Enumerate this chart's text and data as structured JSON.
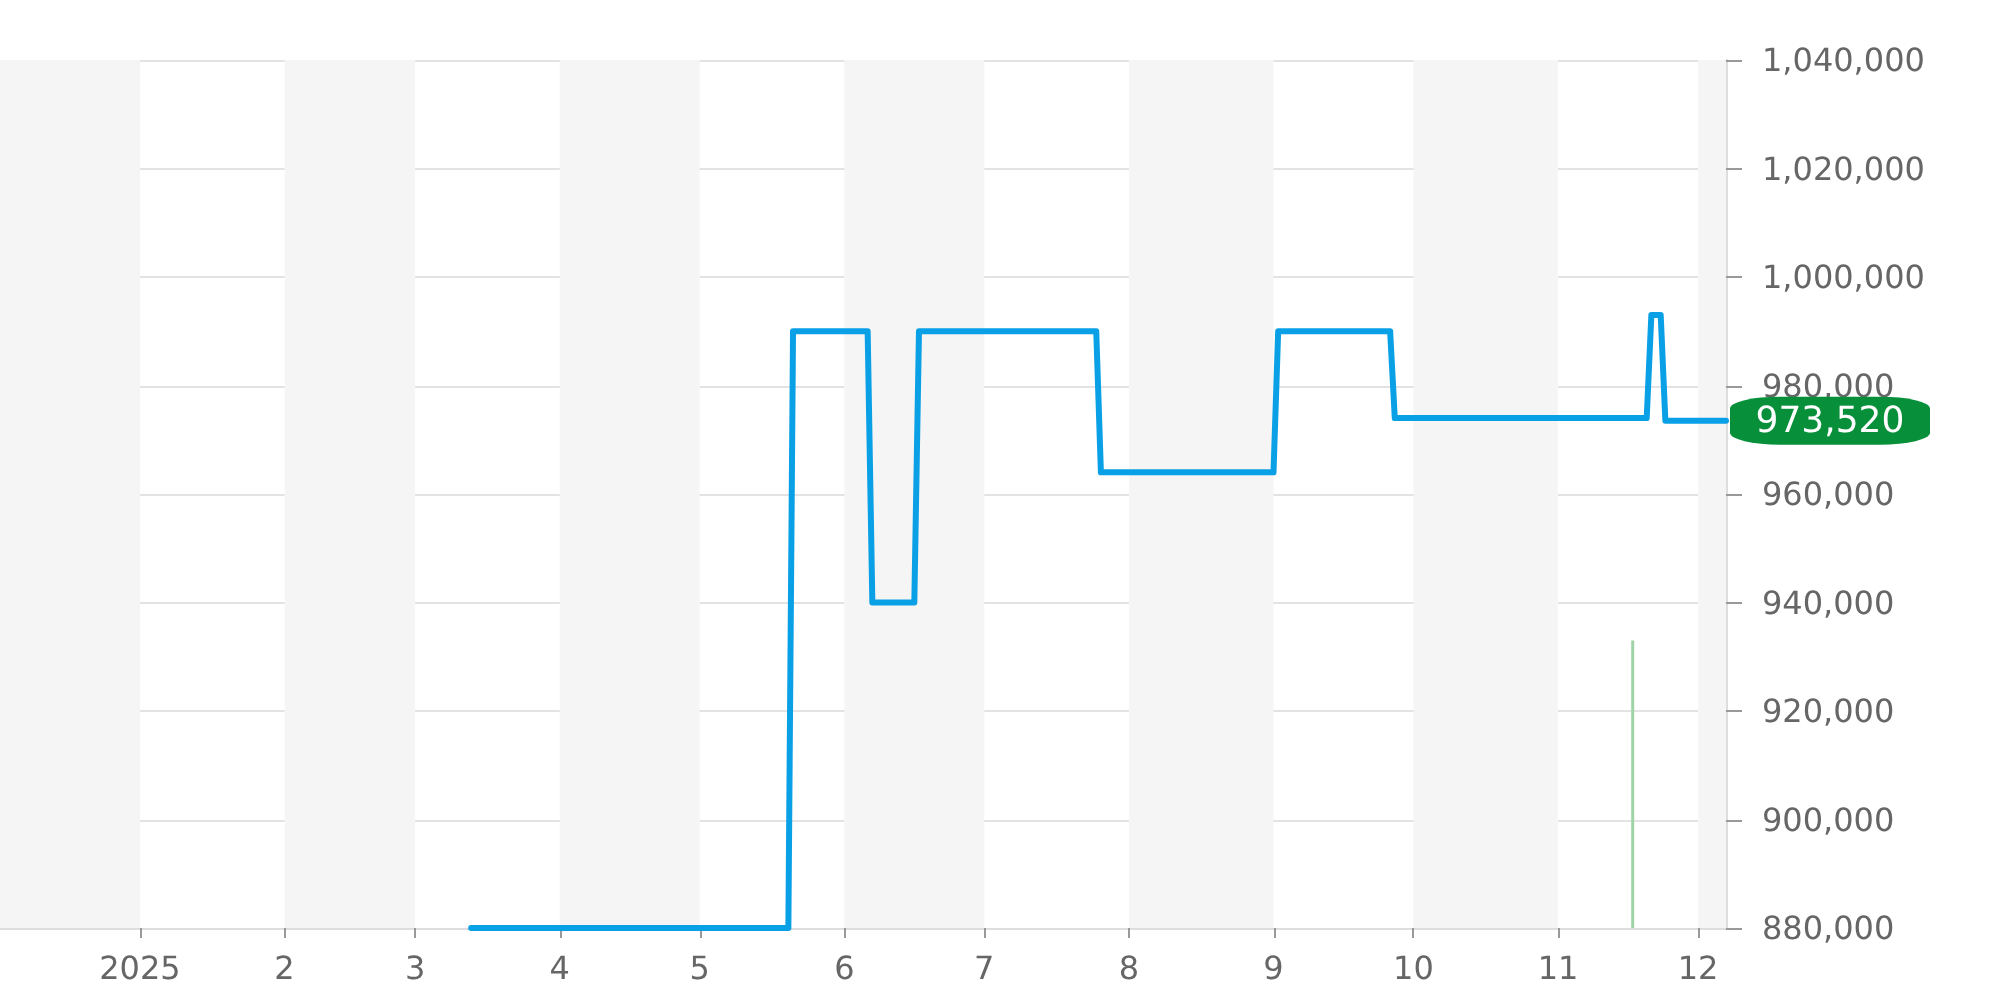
{
  "chart_data": {
    "type": "line",
    "xlim": [
      "2024-12-02",
      "2025-12-07"
    ],
    "xticks": [
      {
        "value": "2025-01-01",
        "label": "2025"
      },
      {
        "value": "2025-02-01",
        "label": "2"
      },
      {
        "value": "2025-03-01",
        "label": "3"
      },
      {
        "value": "2025-04-01",
        "label": "4"
      },
      {
        "value": "2025-05-01",
        "label": "5"
      },
      {
        "value": "2025-06-01",
        "label": "6"
      },
      {
        "value": "2025-07-01",
        "label": "7"
      },
      {
        "value": "2025-08-01",
        "label": "8"
      },
      {
        "value": "2025-09-01",
        "label": "9"
      },
      {
        "value": "2025-10-01",
        "label": "10"
      },
      {
        "value": "2025-11-01",
        "label": "11"
      },
      {
        "value": "2025-12-01",
        "label": "12"
      }
    ],
    "ylim": [
      880000,
      1040000
    ],
    "yticks": [
      {
        "value": 880000,
        "label": "880,000"
      },
      {
        "value": 900000,
        "label": "900,000"
      },
      {
        "value": 920000,
        "label": "920,000"
      },
      {
        "value": 940000,
        "label": "940,000"
      },
      {
        "value": 960000,
        "label": "960,000"
      },
      {
        "value": 980000,
        "label": "980,000"
      },
      {
        "value": 1000000,
        "label": "1,000,000"
      },
      {
        "value": 1020000,
        "label": "1,020,000"
      },
      {
        "value": 1040000,
        "label": "1,040,000"
      }
    ],
    "grid": "y",
    "marker": "none",
    "series": [
      {
        "color": "#0aa0e6",
        "x": [
          "2025-03-13",
          "2025-05-20",
          "2025-05-21",
          "2025-06-06",
          "2025-06-07",
          "2025-06-16",
          "2025-06-17",
          "2025-07-25",
          "2025-07-26",
          "2025-09-01",
          "2025-09-02",
          "2025-09-26",
          "2025-09-27",
          "2025-11-20",
          "2025-11-21",
          "2025-11-23",
          "2025-11-24",
          "2025-12-07"
        ],
        "values": [
          880000,
          880000,
          990000,
          990000,
          940000,
          940000,
          990000,
          990000,
          964000,
          964000,
          990000,
          990000,
          974000,
          974000,
          993000,
          993000,
          973520,
          973520
        ]
      },
      {
        "type": "bar",
        "color": "#9fd4a6",
        "x": [
          "2025-11-17"
        ],
        "values": [
          933000
        ]
      }
    ],
    "bands": [
      {
        "axis": "x",
        "from": "2024-12-02",
        "to": "2025-01-01",
        "color": "#f5f5f5"
      },
      {
        "axis": "x",
        "from": "2025-02-01",
        "to": "2025-03-01",
        "color": "#f5f5f5"
      },
      {
        "axis": "x",
        "from": "2025-04-01",
        "to": "2025-05-01",
        "color": "#f5f5f5"
      },
      {
        "axis": "x",
        "from": "2025-06-01",
        "to": "2025-07-01",
        "color": "#f5f5f5"
      },
      {
        "axis": "x",
        "from": "2025-08-01",
        "to": "2025-09-01",
        "color": "#f5f5f5"
      },
      {
        "axis": "x",
        "from": "2025-10-01",
        "to": "2025-11-01",
        "color": "#f5f5f5"
      },
      {
        "axis": "x",
        "from": "2025-12-01",
        "to": "2025-12-07",
        "color": "#f5f5f5"
      }
    ],
    "annotations": [
      {
        "text": "973,520",
        "x": "2025-12-07",
        "y": 973520
      }
    ]
  }
}
